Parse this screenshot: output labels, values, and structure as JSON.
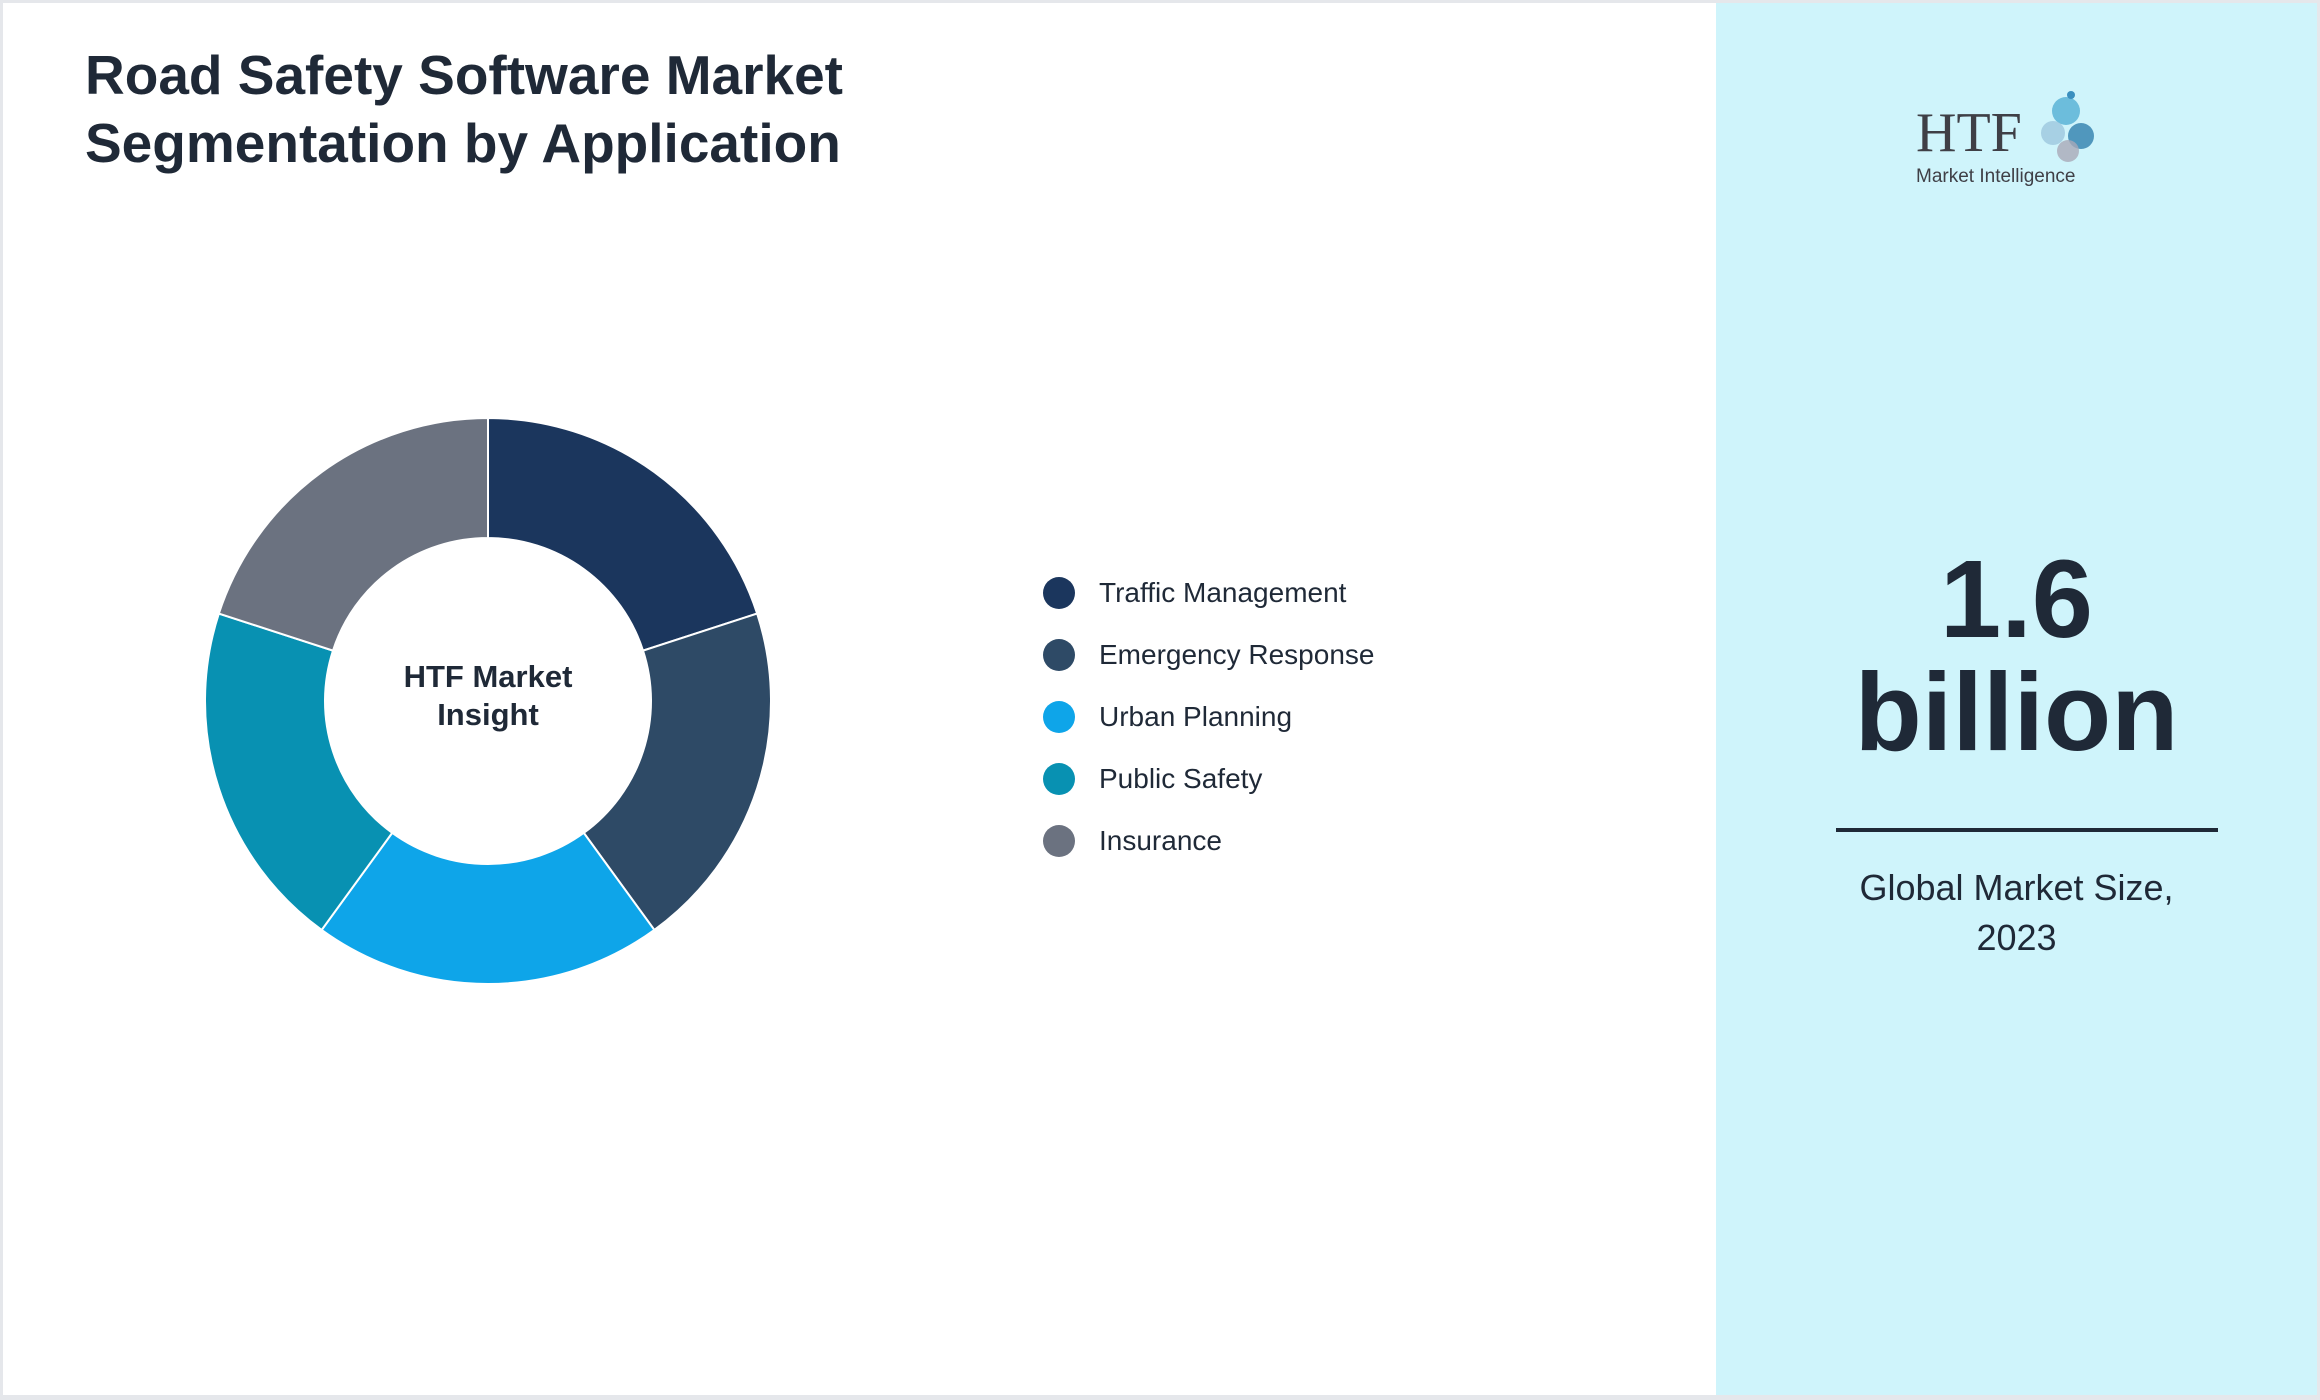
{
  "header": {
    "title_line1": "Road Safety Software Market",
    "title_line2": "Segmentation by Application"
  },
  "chart_data": {
    "type": "pie",
    "style": "donut",
    "title": "Road Safety Software Market Segmentation by Application",
    "center_label_line1": "HTF Market",
    "center_label_line2": "Insight",
    "categories": [
      "Traffic Management",
      "Emergency Response",
      "Urban Planning",
      "Public Safety",
      "Insurance"
    ],
    "values": [
      20,
      20,
      20,
      20,
      20
    ],
    "colors": [
      "#1b365d",
      "#2e4a66",
      "#0ea5e9",
      "#0891b2",
      "#6b7280"
    ],
    "legend_position": "right"
  },
  "sidebar": {
    "logo_text": "HTF",
    "logo_subtext": "Market Intelligence",
    "value_line1": "1.6",
    "value_line2": "billion",
    "caption_line1": "Global Market Size,",
    "caption_line2": "2023"
  }
}
